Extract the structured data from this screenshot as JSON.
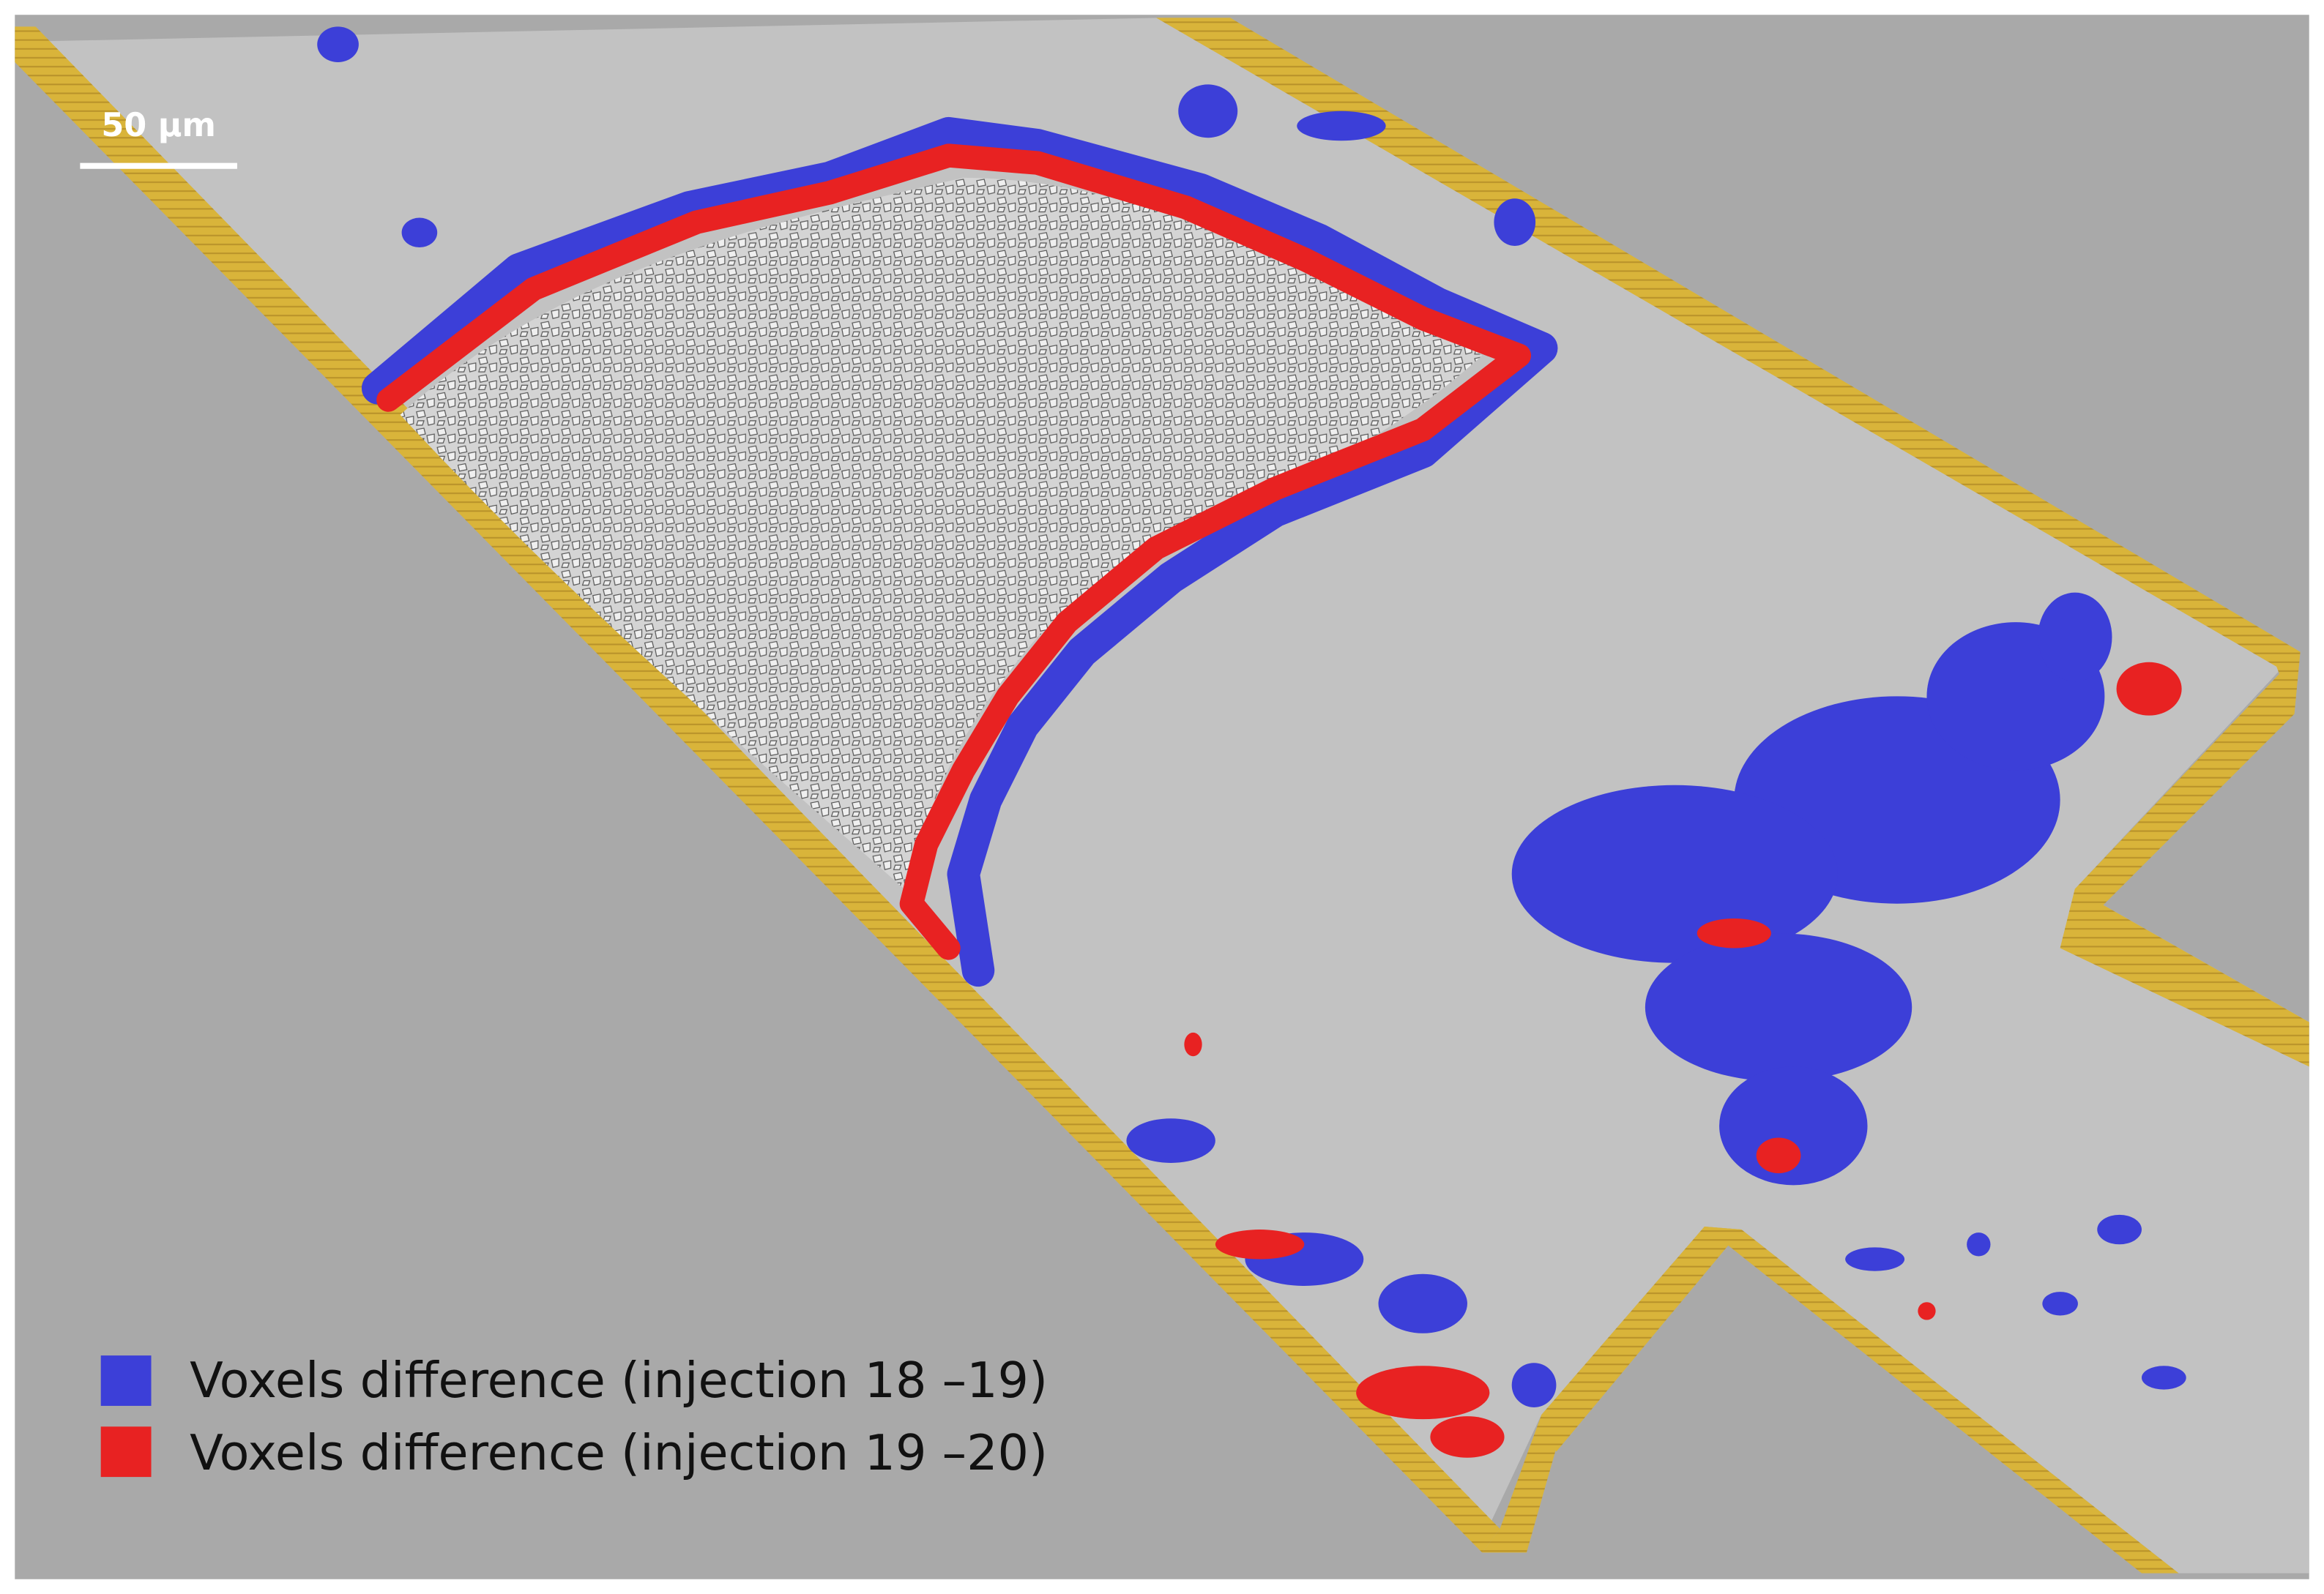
{
  "scale_bar": {
    "label": "50 µm"
  },
  "legend": [
    {
      "label": "Voxels difference (injection 18 –19)",
      "color": "#3c3fd8"
    },
    {
      "label": "Voxels difference (injection 19 –20)",
      "color": "#e82222"
    }
  ]
}
